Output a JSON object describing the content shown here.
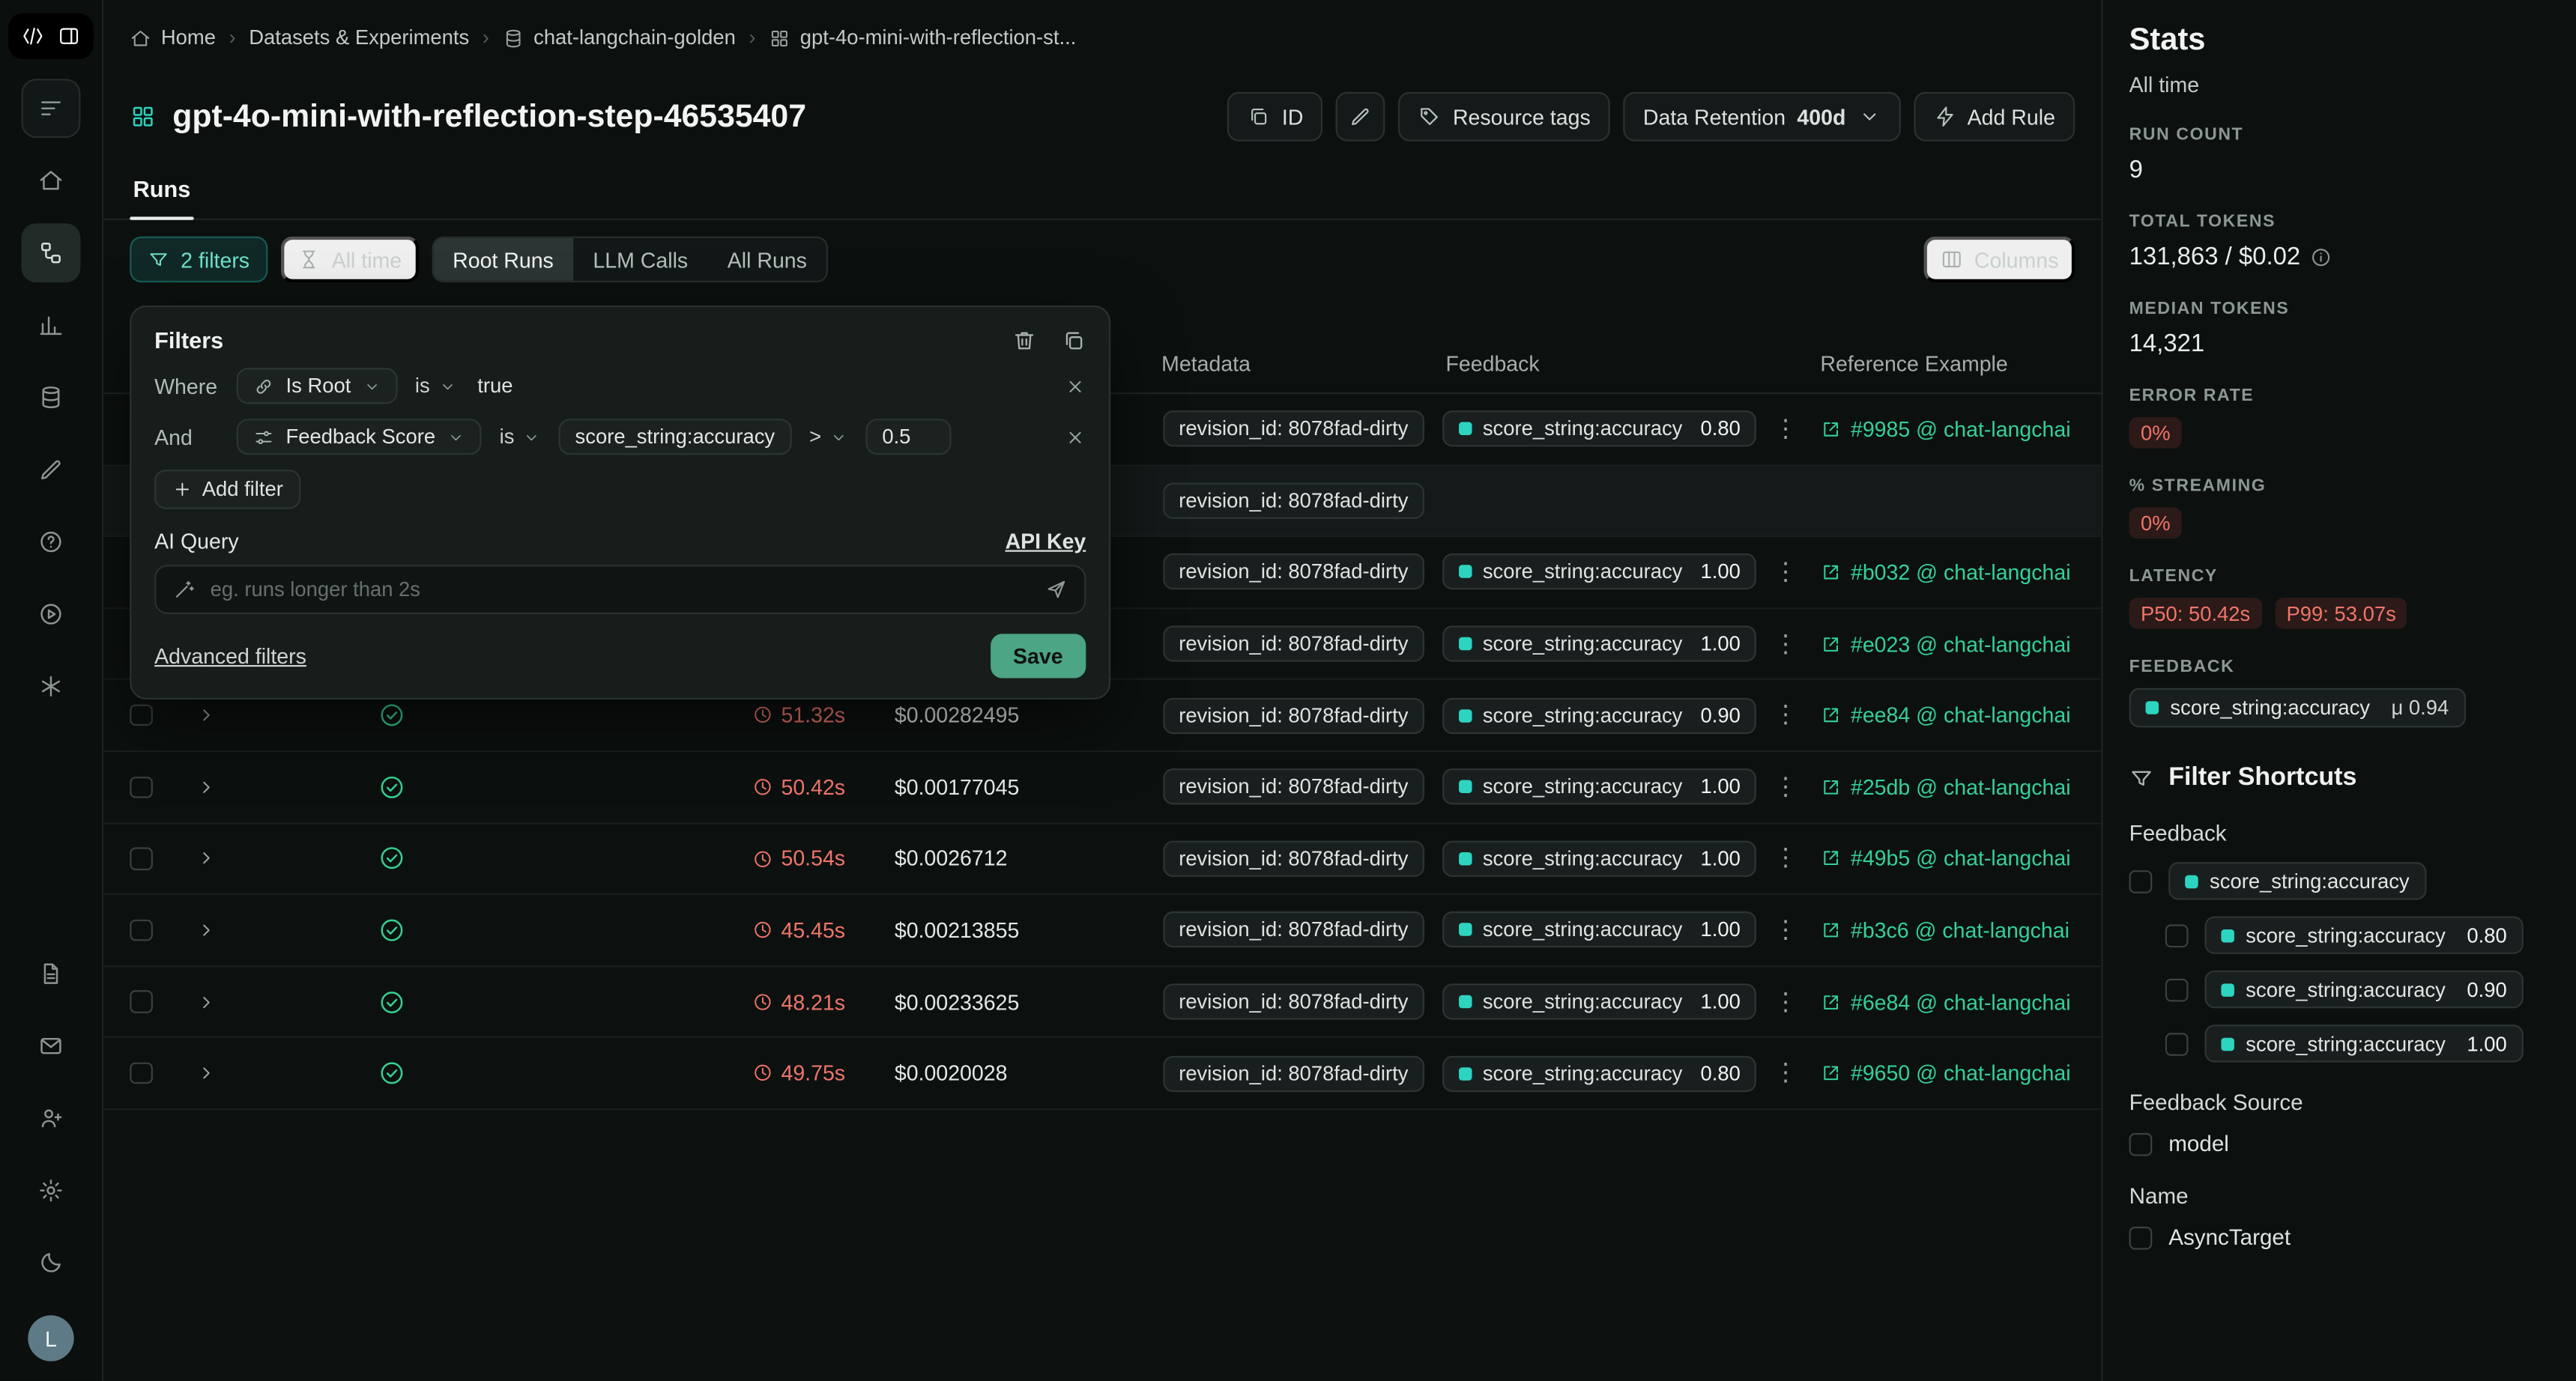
{
  "sidebar": {
    "avatar_initial": "L",
    "icons": [
      "langsmith-logo",
      "panel-toggle",
      "menu",
      "home",
      "experiments",
      "monitors",
      "datasets",
      "annotations",
      "support",
      "playground",
      "integrations",
      "docs",
      "mail",
      "invite-user",
      "settings",
      "theme-toggle",
      "avatar"
    ],
    "active": "experiments"
  },
  "breadcrumb": {
    "items": [
      "Home",
      "Datasets & Experiments",
      "chat-langchain-golden",
      "gpt-4o-mini-with-reflection-st..."
    ]
  },
  "header": {
    "title": "gpt-4o-mini-with-reflection-step-46535407",
    "id_button": "ID",
    "resource_tags": "Resource tags",
    "data_retention_label": "Data Retention",
    "data_retention_value": "400d",
    "add_rule": "Add Rule"
  },
  "tabs": {
    "runs": "Runs"
  },
  "toolbar": {
    "filters_chip": "2 filters",
    "time_range": "All time",
    "segments": [
      "Root Runs",
      "LLM Calls",
      "All Runs"
    ],
    "active_segment": "Root Runs",
    "columns": "Columns"
  },
  "filter_panel": {
    "title": "Filters",
    "where_label": "Where",
    "and_label": "And",
    "rule1": {
      "field": "Is Root",
      "op": "is",
      "value": "true"
    },
    "rule2": {
      "field": "Feedback Score",
      "op": "is",
      "key": "score_string:accuracy",
      "comparator": ">",
      "value": "0.5"
    },
    "add_filter": "Add filter",
    "ai_query_label": "AI Query",
    "api_key_link": "API Key",
    "ai_placeholder": "eg. runs longer than 2s",
    "advanced_filters_link": "Advanced filters",
    "save_button": "Save"
  },
  "table": {
    "headers": {
      "metadata": "Metadata",
      "feedback": "Feedback",
      "reference": "Reference Example"
    },
    "feedback_key": "score_string:accuracy",
    "rows": [
      {
        "latency": "",
        "cost": "",
        "metadata": "revision_id: 8078fad-dirty",
        "feedback": "0.80",
        "reference": "#9985 @ chat-langchai"
      },
      {
        "latency": "",
        "cost": "",
        "metadata": "revision_id: 8078fad-dirty",
        "feedback": null,
        "reference": null,
        "highlight": true
      },
      {
        "latency": "",
        "cost": "",
        "metadata": "revision_id: 8078fad-dirty",
        "feedback": "1.00",
        "reference": "#b032 @ chat-langchai"
      },
      {
        "latency": "",
        "cost": "",
        "metadata": "revision_id: 8078fad-dirty",
        "feedback": "1.00",
        "reference": "#e023 @ chat-langchai"
      },
      {
        "latency": "51.32s",
        "cost": "$0.00282495",
        "metadata": "revision_id: 8078fad-dirty",
        "feedback": "0.90",
        "reference": "#ee84 @ chat-langchai"
      },
      {
        "latency": "50.42s",
        "cost": "$0.00177045",
        "metadata": "revision_id: 8078fad-dirty",
        "feedback": "1.00",
        "reference": "#25db @ chat-langchai"
      },
      {
        "latency": "50.54s",
        "cost": "$0.0026712",
        "metadata": "revision_id: 8078fad-dirty",
        "feedback": "1.00",
        "reference": "#49b5 @ chat-langchai"
      },
      {
        "latency": "45.45s",
        "cost": "$0.00213855",
        "metadata": "revision_id: 8078fad-dirty",
        "feedback": "1.00",
        "reference": "#b3c6 @ chat-langchai"
      },
      {
        "latency": "48.21s",
        "cost": "$0.00233625",
        "metadata": "revision_id: 8078fad-dirty",
        "feedback": "1.00",
        "reference": "#6e84 @ chat-langchai"
      },
      {
        "latency": "49.75s",
        "cost": "$0.0020028",
        "metadata": "revision_id: 8078fad-dirty",
        "feedback": "0.80",
        "reference": "#9650 @ chat-langchai"
      }
    ]
  },
  "stats": {
    "title": "Stats",
    "subtitle": "All time",
    "items": [
      {
        "label": "RUN COUNT",
        "value": "9",
        "type": "plain"
      },
      {
        "label": "TOTAL TOKENS",
        "value": "131,863 / $0.02",
        "type": "plain",
        "info": true
      },
      {
        "label": "MEDIAN TOKENS",
        "value": "14,321",
        "type": "plain"
      },
      {
        "label": "ERROR RATE",
        "value": "0%",
        "type": "red"
      },
      {
        "label": "% STREAMING",
        "value": "0%",
        "type": "red"
      },
      {
        "label": "LATENCY",
        "type": "red-multi",
        "values": [
          "P50: 50.42s",
          "P99: 53.07s"
        ]
      },
      {
        "label": "FEEDBACK",
        "type": "feedback",
        "name": "score_string:accuracy",
        "value": "μ 0.94"
      }
    ]
  },
  "filter_shortcuts": {
    "title": "Filter Shortcuts",
    "groups": [
      {
        "label": "Feedback",
        "items": [
          {
            "type": "chip",
            "name": "score_string:accuracy",
            "value": "",
            "indent": false
          },
          {
            "type": "chip",
            "name": "score_string:accuracy",
            "value": "0.80",
            "indent": true
          },
          {
            "type": "chip",
            "name": "score_string:accuracy",
            "value": "0.90",
            "indent": true
          },
          {
            "type": "chip",
            "name": "score_string:accuracy",
            "value": "1.00",
            "indent": true
          }
        ]
      },
      {
        "label": "Feedback Source",
        "items": [
          {
            "type": "text",
            "name": "model"
          }
        ]
      },
      {
        "label": "Name",
        "items": [
          {
            "type": "text",
            "name": "AsyncTarget"
          }
        ]
      }
    ]
  },
  "colors": {
    "accent_teal": "#2dd4bf",
    "error_red": "#f0756b",
    "link_green": "#35cf9e",
    "save_green": "#4ca584"
  }
}
